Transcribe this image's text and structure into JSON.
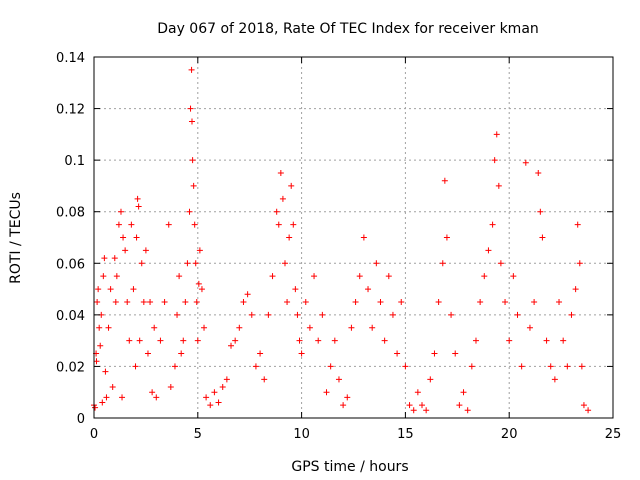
{
  "chart_data": {
    "type": "scatter",
    "title": "Day 067 of 2018, Rate Of TEC Index for receiver kman",
    "xlabel": "GPS time / hours",
    "ylabel": "ROTI / TECUs",
    "xlim": [
      0,
      25
    ],
    "ylim": [
      0,
      0.14
    ],
    "xticks": [
      0,
      5,
      10,
      15,
      20,
      25
    ],
    "xtick_labels": [
      "0",
      "5",
      "10",
      "15",
      "20",
      "25"
    ],
    "yticks": [
      0,
      0.02,
      0.04,
      0.06,
      0.08,
      0.1,
      0.12,
      0.14
    ],
    "ytick_labels": [
      "0",
      "0.02",
      "0.04",
      "0.06",
      "0.08",
      "0.1",
      "0.12",
      "0.14"
    ],
    "grid": true,
    "marker": "+",
    "color": "#ff0000",
    "series": [
      {
        "name": "ROTI",
        "points": [
          [
            0.0,
            0.005
          ],
          [
            0.05,
            0.004
          ],
          [
            0.1,
            0.025
          ],
          [
            0.12,
            0.022
          ],
          [
            0.15,
            0.045
          ],
          [
            0.2,
            0.05
          ],
          [
            0.25,
            0.035
          ],
          [
            0.3,
            0.028
          ],
          [
            0.35,
            0.04
          ],
          [
            0.4,
            0.006
          ],
          [
            0.45,
            0.055
          ],
          [
            0.5,
            0.062
          ],
          [
            0.55,
            0.018
          ],
          [
            0.6,
            0.008
          ],
          [
            0.7,
            0.035
          ],
          [
            0.8,
            0.05
          ],
          [
            0.9,
            0.012
          ],
          [
            1.0,
            0.062
          ],
          [
            1.05,
            0.045
          ],
          [
            1.1,
            0.055
          ],
          [
            1.2,
            0.075
          ],
          [
            1.3,
            0.08
          ],
          [
            1.35,
            0.008
          ],
          [
            1.4,
            0.07
          ],
          [
            1.5,
            0.065
          ],
          [
            1.6,
            0.045
          ],
          [
            1.7,
            0.03
          ],
          [
            1.8,
            0.075
          ],
          [
            1.9,
            0.05
          ],
          [
            2.0,
            0.02
          ],
          [
            2.05,
            0.07
          ],
          [
            2.1,
            0.085
          ],
          [
            2.15,
            0.082
          ],
          [
            2.2,
            0.03
          ],
          [
            2.3,
            0.06
          ],
          [
            2.4,
            0.045
          ],
          [
            2.5,
            0.065
          ],
          [
            2.6,
            0.025
          ],
          [
            2.7,
            0.045
          ],
          [
            2.8,
            0.01
          ],
          [
            2.9,
            0.035
          ],
          [
            3.0,
            0.008
          ],
          [
            3.2,
            0.03
          ],
          [
            3.4,
            0.045
          ],
          [
            3.6,
            0.075
          ],
          [
            3.7,
            0.012
          ],
          [
            3.9,
            0.02
          ],
          [
            4.0,
            0.04
          ],
          [
            4.1,
            0.055
          ],
          [
            4.2,
            0.025
          ],
          [
            4.3,
            0.03
          ],
          [
            4.4,
            0.045
          ],
          [
            4.5,
            0.06
          ],
          [
            4.6,
            0.08
          ],
          [
            4.65,
            0.12
          ],
          [
            4.7,
            0.135
          ],
          [
            4.72,
            0.115
          ],
          [
            4.75,
            0.1
          ],
          [
            4.8,
            0.09
          ],
          [
            4.85,
            0.075
          ],
          [
            4.9,
            0.06
          ],
          [
            4.95,
            0.045
          ],
          [
            5.0,
            0.03
          ],
          [
            5.05,
            0.052
          ],
          [
            5.1,
            0.065
          ],
          [
            5.2,
            0.05
          ],
          [
            5.3,
            0.035
          ],
          [
            5.4,
            0.008
          ],
          [
            5.6,
            0.005
          ],
          [
            5.8,
            0.01
          ],
          [
            6.0,
            0.006
          ],
          [
            6.2,
            0.012
          ],
          [
            6.4,
            0.015
          ],
          [
            6.6,
            0.028
          ],
          [
            6.8,
            0.03
          ],
          [
            7.0,
            0.035
          ],
          [
            7.2,
            0.045
          ],
          [
            7.4,
            0.048
          ],
          [
            7.6,
            0.04
          ],
          [
            7.8,
            0.02
          ],
          [
            8.0,
            0.025
          ],
          [
            8.2,
            0.015
          ],
          [
            8.4,
            0.04
          ],
          [
            8.6,
            0.055
          ],
          [
            8.8,
            0.08
          ],
          [
            8.9,
            0.075
          ],
          [
            9.0,
            0.095
          ],
          [
            9.1,
            0.085
          ],
          [
            9.2,
            0.06
          ],
          [
            9.3,
            0.045
          ],
          [
            9.4,
            0.07
          ],
          [
            9.5,
            0.09
          ],
          [
            9.6,
            0.075
          ],
          [
            9.7,
            0.05
          ],
          [
            9.8,
            0.04
          ],
          [
            9.9,
            0.03
          ],
          [
            10.0,
            0.025
          ],
          [
            10.2,
            0.045
          ],
          [
            10.4,
            0.035
          ],
          [
            10.6,
            0.055
          ],
          [
            10.8,
            0.03
          ],
          [
            11.0,
            0.04
          ],
          [
            11.2,
            0.01
          ],
          [
            11.4,
            0.02
          ],
          [
            11.6,
            0.03
          ],
          [
            11.8,
            0.015
          ],
          [
            12.0,
            0.005
          ],
          [
            12.2,
            0.008
          ],
          [
            12.4,
            0.035
          ],
          [
            12.6,
            0.045
          ],
          [
            12.8,
            0.055
          ],
          [
            13.0,
            0.07
          ],
          [
            13.2,
            0.05
          ],
          [
            13.4,
            0.035
          ],
          [
            13.6,
            0.06
          ],
          [
            13.8,
            0.045
          ],
          [
            14.0,
            0.03
          ],
          [
            14.2,
            0.055
          ],
          [
            14.4,
            0.04
          ],
          [
            14.6,
            0.025
          ],
          [
            14.8,
            0.045
          ],
          [
            15.0,
            0.02
          ],
          [
            15.2,
            0.005
          ],
          [
            15.4,
            0.003
          ],
          [
            15.6,
            0.01
          ],
          [
            15.8,
            0.005
          ],
          [
            16.0,
            0.003
          ],
          [
            16.2,
            0.015
          ],
          [
            16.4,
            0.025
          ],
          [
            16.6,
            0.045
          ],
          [
            16.8,
            0.06
          ],
          [
            16.9,
            0.092
          ],
          [
            17.0,
            0.07
          ],
          [
            17.2,
            0.04
          ],
          [
            17.4,
            0.025
          ],
          [
            17.6,
            0.005
          ],
          [
            17.8,
            0.01
          ],
          [
            18.0,
            0.003
          ],
          [
            18.2,
            0.02
          ],
          [
            18.4,
            0.03
          ],
          [
            18.6,
            0.045
          ],
          [
            18.8,
            0.055
          ],
          [
            19.0,
            0.065
          ],
          [
            19.2,
            0.075
          ],
          [
            19.3,
            0.1
          ],
          [
            19.4,
            0.11
          ],
          [
            19.5,
            0.09
          ],
          [
            19.6,
            0.06
          ],
          [
            19.8,
            0.045
          ],
          [
            20.0,
            0.03
          ],
          [
            20.2,
            0.055
          ],
          [
            20.4,
            0.04
          ],
          [
            20.6,
            0.02
          ],
          [
            20.8,
            0.099
          ],
          [
            21.0,
            0.035
          ],
          [
            21.2,
            0.045
          ],
          [
            21.4,
            0.095
          ],
          [
            21.5,
            0.08
          ],
          [
            21.6,
            0.07
          ],
          [
            21.8,
            0.03
          ],
          [
            22.0,
            0.02
          ],
          [
            22.2,
            0.015
          ],
          [
            22.4,
            0.045
          ],
          [
            22.6,
            0.03
          ],
          [
            22.8,
            0.02
          ],
          [
            23.0,
            0.04
          ],
          [
            23.2,
            0.05
          ],
          [
            23.3,
            0.075
          ],
          [
            23.4,
            0.06
          ],
          [
            23.5,
            0.02
          ],
          [
            23.6,
            0.005
          ],
          [
            23.8,
            0.003
          ]
        ]
      }
    ]
  }
}
